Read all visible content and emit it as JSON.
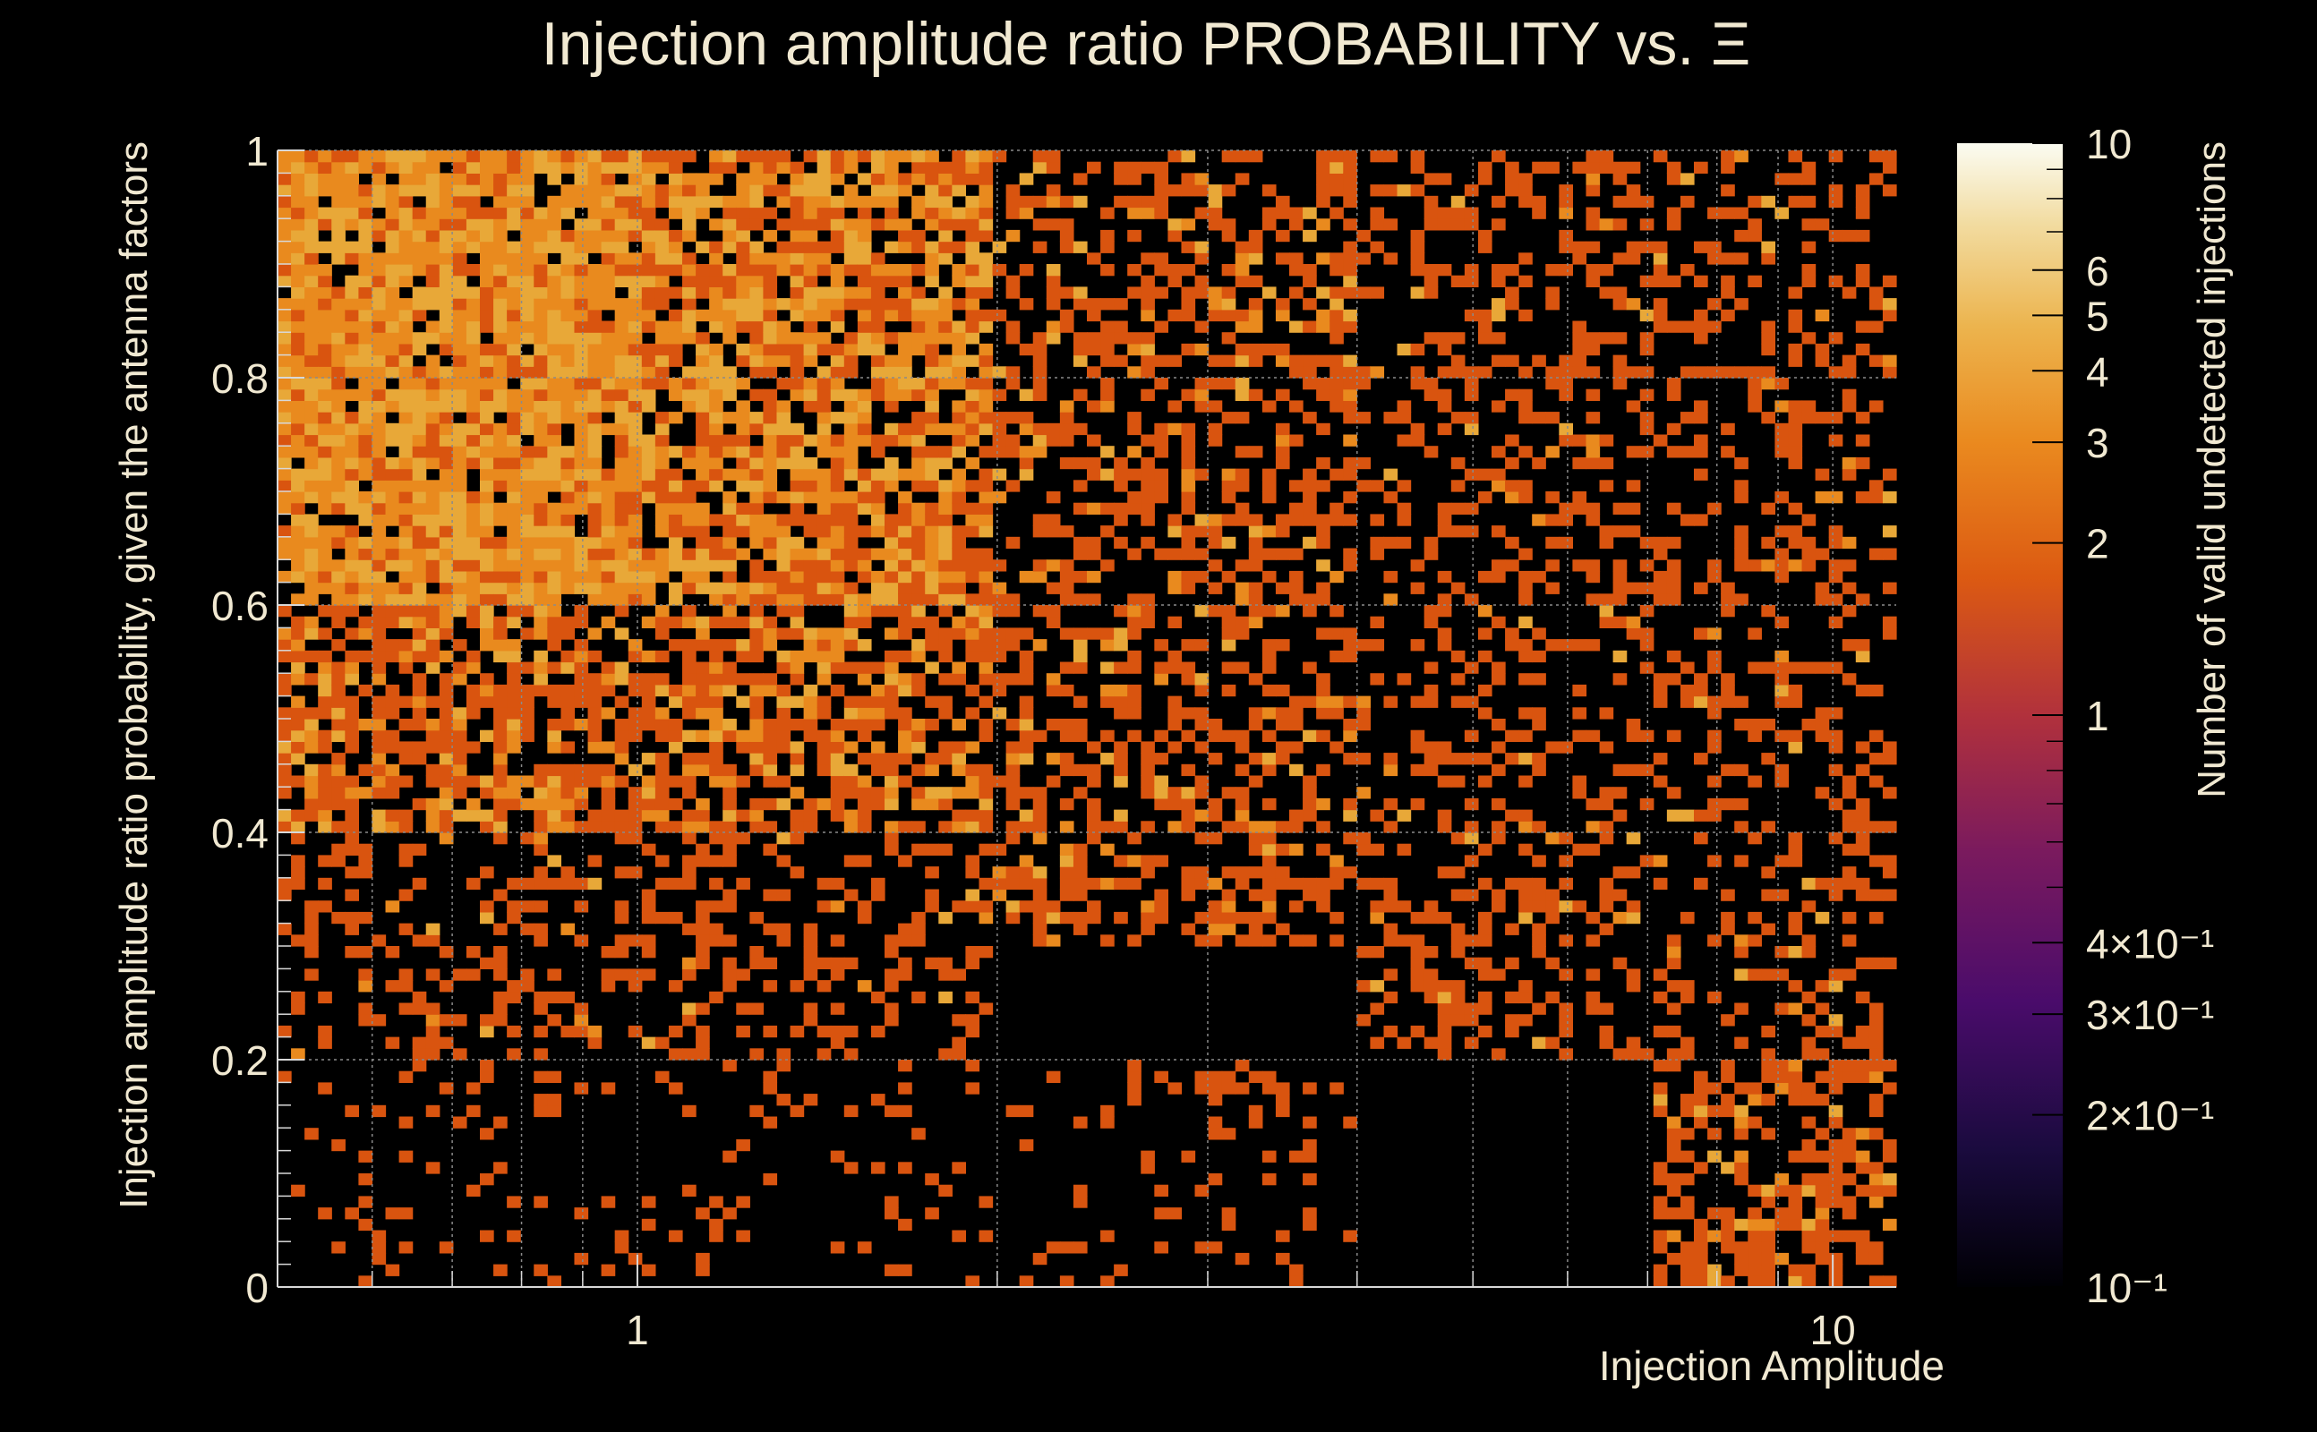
{
  "chart_data": {
    "type": "heatmap",
    "title": "Injection amplitude ratio PROBABILITY vs.  Ξ",
    "xlabel": "Injection Amplitude",
    "ylabel": "Injection amplitude ratio probability, given the antenna factors",
    "zlabel": "Number of valid undetected injections",
    "x_scale": "log",
    "xlim": [
      0.5,
      11.3
    ],
    "ylim": [
      0,
      1
    ],
    "z_scale": "log",
    "zlim": [
      0.1,
      10
    ],
    "grid": true,
    "colormap": "inferno",
    "colors": {
      "background": "#000000",
      "text": "#f1e9d2",
      "grid": "#8a8a8a",
      "count_1": "#d9540f",
      "count_2": "#e98a1e",
      "count_3": "#e8a838"
    },
    "x_ticks": [
      {
        "value": 1,
        "label": "1"
      },
      {
        "value": 10,
        "label": "10"
      }
    ],
    "y_ticks": [
      {
        "value": 0,
        "label": "0"
      },
      {
        "value": 0.2,
        "label": "0.2"
      },
      {
        "value": 0.4,
        "label": "0.4"
      },
      {
        "value": 0.6,
        "label": "0.6"
      },
      {
        "value": 0.8,
        "label": "0.8"
      },
      {
        "value": 1,
        "label": "1"
      }
    ],
    "z_ticks": [
      {
        "value": 10,
        "label": "10"
      },
      {
        "value": 6,
        "label": "6"
      },
      {
        "value": 5,
        "label": "5"
      },
      {
        "value": 4,
        "label": "4"
      },
      {
        "value": 3,
        "label": "3"
      },
      {
        "value": 2,
        "label": "2"
      },
      {
        "value": 1,
        "label": "1"
      },
      {
        "value": 0.4,
        "label": "4×10⁻¹"
      },
      {
        "value": 0.3,
        "label": "3×10⁻¹"
      },
      {
        "value": 0.2,
        "label": "2×10⁻¹"
      },
      {
        "value": 0.1,
        "label": "10⁻¹"
      }
    ],
    "bins": {
      "x_count": 120,
      "y_count": 100
    },
    "density_zones": [
      {
        "x_range": [
          0.5,
          1.0
        ],
        "y_range": [
          0.6,
          1.0
        ],
        "fill_probability": 0.92,
        "mean_count": 2.0
      },
      {
        "x_range": [
          1.0,
          2.0
        ],
        "y_range": [
          0.6,
          1.0
        ],
        "fill_probability": 0.82,
        "mean_count": 1.7
      },
      {
        "x_range": [
          0.5,
          2.0
        ],
        "y_range": [
          0.4,
          0.6
        ],
        "fill_probability": 0.65,
        "mean_count": 1.4
      },
      {
        "x_range": [
          2.0,
          4.0
        ],
        "y_range": [
          0.3,
          1.0
        ],
        "fill_probability": 0.45,
        "mean_count": 1.2
      },
      {
        "x_range": [
          0.5,
          2.0
        ],
        "y_range": [
          0.2,
          0.4
        ],
        "fill_probability": 0.28,
        "mean_count": 1.1
      },
      {
        "x_range": [
          4.0,
          11.3
        ],
        "y_range": [
          0.2,
          1.0
        ],
        "fill_probability": 0.3,
        "mean_count": 1.1
      },
      {
        "x_range": [
          0.5,
          4.0
        ],
        "y_range": [
          0.0,
          0.2
        ],
        "fill_probability": 0.12,
        "mean_count": 1.0
      },
      {
        "x_range": [
          7.0,
          11.3
        ],
        "y_range": [
          0.0,
          0.2
        ],
        "fill_probability": 0.55,
        "mean_count": 1.2
      }
    ]
  }
}
